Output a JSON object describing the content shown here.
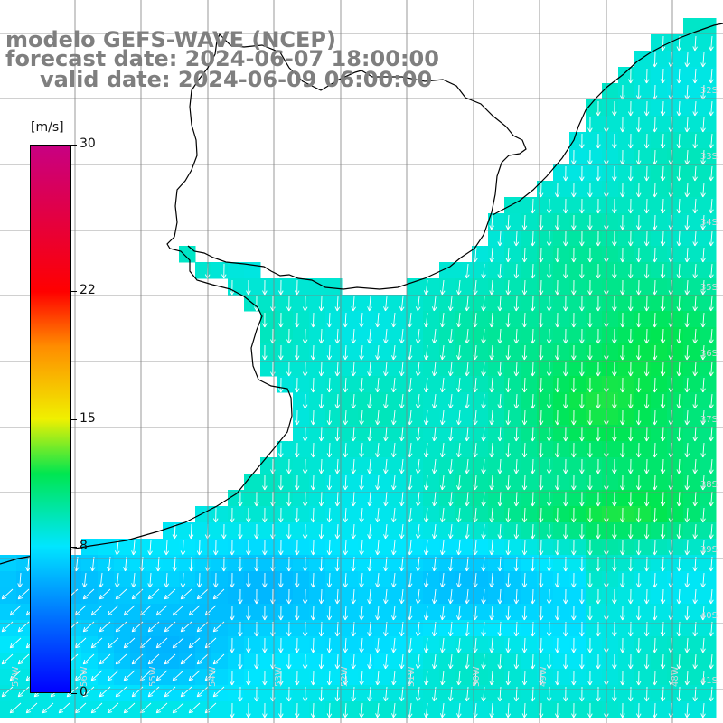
{
  "titles": {
    "line1": "modelo GEFS-WAVE (NCEP)",
    "line2": "forecast date: 2024-06-07 18:00:00",
    "line3": "valid date: 2024-06-09 06:00:00"
  },
  "colorbar": {
    "unit": "[m/s]",
    "min": 0,
    "max": 30,
    "ticks": [
      {
        "value": 30,
        "label": "30"
      },
      {
        "value": 22,
        "label": "22"
      },
      {
        "value": 15,
        "label": "15"
      },
      {
        "value": 8,
        "label": "8"
      },
      {
        "value": 0,
        "label": "0"
      }
    ]
  },
  "map": {
    "lat_labels": [
      "32S",
      "33S",
      "34S",
      "35S",
      "36S",
      "37S",
      "38S",
      "39S",
      "40S",
      "41S"
    ],
    "lon_labels": [
      "57W",
      "56W",
      "55W",
      "54W",
      "53W",
      "52W",
      "51W",
      "50W",
      "49W",
      "48W"
    ]
  },
  "colors": {
    "land": "#ffffff",
    "grid": "#808080",
    "coast": "#000000",
    "arrows": "#ffffff",
    "title": "#7f7f7f"
  }
}
